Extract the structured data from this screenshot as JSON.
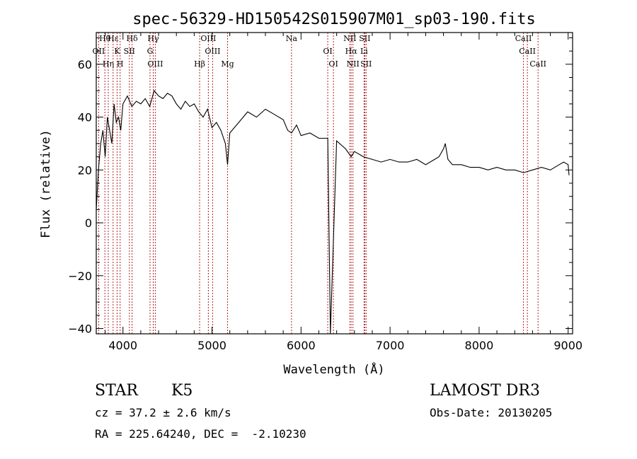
{
  "chart_data": {
    "type": "line",
    "title": "spec-56329-HD150542S015907M01_sp03-190.fits",
    "xlabel": "Wavelength (Å)",
    "ylabel": "Flux (relative)",
    "xlim": [
      3700,
      9050
    ],
    "ylim": [
      -42,
      72
    ],
    "xticks": [
      4000,
      5000,
      6000,
      7000,
      8000,
      9000
    ],
    "yticks": [
      -40,
      -20,
      0,
      20,
      40,
      60
    ],
    "grid": false,
    "colors": {
      "spectrum": "#000000",
      "lines": "#b22222"
    },
    "series": [
      {
        "name": "spectrum",
        "x": [
          3700,
          3725,
          3750,
          3775,
          3800,
          3825,
          3850,
          3875,
          3900,
          3925,
          3950,
          3975,
          4000,
          4050,
          4100,
          4150,
          4200,
          4250,
          4300,
          4350,
          4400,
          4450,
          4500,
          4550,
          4600,
          4650,
          4700,
          4750,
          4800,
          4850,
          4900,
          4950,
          5000,
          5050,
          5100,
          5150,
          5175,
          5200,
          5300,
          5400,
          5500,
          5600,
          5700,
          5800,
          5850,
          5893,
          5950,
          6000,
          6100,
          6200,
          6300,
          6330,
          6400,
          6500,
          6563,
          6600,
          6700,
          6800,
          6900,
          7000,
          7100,
          7200,
          7300,
          7400,
          7500,
          7550,
          7600,
          7620,
          7650,
          7700,
          7800,
          7900,
          8000,
          8100,
          8200,
          8300,
          8400,
          8500,
          8600,
          8700,
          8800,
          8900,
          8950,
          9000,
          9010
        ],
        "y": [
          5,
          20,
          30,
          35,
          25,
          40,
          35,
          30,
          45,
          38,
          40,
          35,
          45,
          48,
          44,
          46,
          45,
          47,
          44,
          50,
          48,
          47,
          49,
          48,
          45,
          43,
          46,
          44,
          45,
          42,
          40,
          43,
          36,
          38,
          35,
          30,
          22,
          34,
          38,
          42,
          40,
          43,
          41,
          39,
          35,
          34,
          37,
          33,
          34,
          32,
          32,
          -42,
          31,
          28,
          25,
          27,
          25,
          24,
          23,
          24,
          23,
          23,
          24,
          22,
          24,
          25,
          28,
          30,
          24,
          22,
          22,
          21,
          21,
          20,
          21,
          20,
          20,
          19,
          20,
          21,
          20,
          22,
          23,
          22,
          18
        ]
      }
    ],
    "lines": [
      {
        "label": "Hθ",
        "x": 3797
      },
      {
        "label": "OII",
        "x": 3727
      },
      {
        "label": "Hη",
        "x": 3835
      },
      {
        "label": "Hε",
        "x": 3889
      },
      {
        "label": "K",
        "x": 3934
      },
      {
        "label": "H",
        "x": 3968
      },
      {
        "label": "Hδ",
        "x": 4102
      },
      {
        "label": "SII",
        "x": 4072
      },
      {
        "label": "OIII",
        "x": 4363
      },
      {
        "label": "Hγ",
        "x": 4340
      },
      {
        "label": "G",
        "x": 4304
      },
      {
        "label": "Hβ",
        "x": 4861
      },
      {
        "label": "OIII",
        "x": 4959
      },
      {
        "label": "OIII",
        "x": 5007
      },
      {
        "label": "Mg",
        "x": 5175
      },
      {
        "label": "Na",
        "x": 5893
      },
      {
        "label": "OI",
        "x": 6300
      },
      {
        "label": "OI",
        "x": 6364
      },
      {
        "label": "NII",
        "x": 6548
      },
      {
        "label": "Hα",
        "x": 6563
      },
      {
        "label": "NII",
        "x": 6583
      },
      {
        "label": "SII",
        "x": 6716
      },
      {
        "label": "Li",
        "x": 6708
      },
      {
        "label": "SII",
        "x": 6731
      },
      {
        "label": "CaII",
        "x": 8498
      },
      {
        "label": "CaII",
        "x": 8542
      },
      {
        "label": "CaII",
        "x": 8662
      }
    ]
  },
  "info": {
    "class_label": "STAR",
    "subclass": "K5",
    "survey": "LAMOST DR3",
    "cz": "cz = 37.2 ± 2.6 km/s",
    "obs_date": "Obs-Date: 20130205",
    "coords": "RA = 225.64240, DEC =  -2.10230"
  }
}
